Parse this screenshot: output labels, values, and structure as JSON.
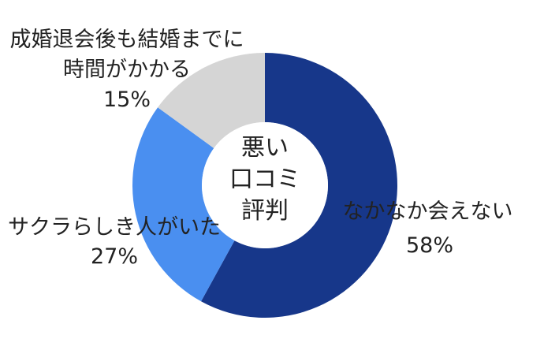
{
  "chart_data": {
    "type": "donut",
    "center_label": [
      "悪い",
      "口コミ",
      "評判"
    ],
    "categories": [
      "なかなか会えない",
      "サクラらしき人がいた",
      "成婚退会後も結婚までに時間がかかる"
    ],
    "values": [
      58,
      27,
      15
    ],
    "value_labels": [
      "58%",
      "27%",
      "15%"
    ],
    "colors": [
      "#17378a",
      "#4a8ff0",
      "#d5d5d5"
    ]
  }
}
